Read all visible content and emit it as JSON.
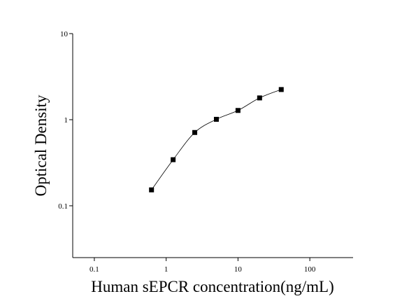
{
  "chart_data": {
    "type": "scatter",
    "xlabel": "Human sEPCR concentration(ng/mL)",
    "ylabel": "Optical Density",
    "x": [
      0.625,
      1.25,
      2.5,
      5,
      10,
      20,
      40
    ],
    "series": [
      {
        "values": [
          0.153,
          0.343,
          0.71,
          1.01,
          1.28,
          1.79,
          2.24
        ],
        "color": "#000000"
      }
    ],
    "xscale": "log",
    "yscale": "log",
    "xlim": [
      0.05,
      400
    ],
    "ylim": [
      0.025,
      10
    ],
    "xticks": [
      0.1,
      1,
      10,
      100
    ],
    "yticks": [
      0.1,
      1,
      10
    ],
    "fit_curve": true
  }
}
